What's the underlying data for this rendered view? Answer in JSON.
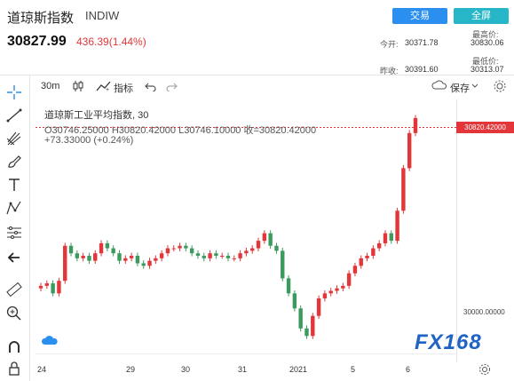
{
  "header": {
    "title": "道琼斯指数",
    "code": "INDIW",
    "trade_button": "交易",
    "fullscreen_button": "全屏",
    "price": "30827.99",
    "change": "436.39(1.44%)",
    "stats": {
      "open_label": "今开:",
      "open_value": "30371.78",
      "high_label": "最高价:",
      "high_value": "30830.06",
      "prev_label": "昨收:",
      "prev_value": "30391.60",
      "low_label": "最低价:",
      "low_value": "30313.07"
    }
  },
  "toolbar": {
    "interval": "30m",
    "indicator_label": "指标",
    "save_label": "保存"
  },
  "legend": {
    "name": "道琼斯工业平均指数, 30",
    "ohlc": "O30746.25000  H30820.42000  L30746.10000  收=30820.42000",
    "delta": "+73.33000 (+0.24%)"
  },
  "price_tag": "30820.42000",
  "axis_label_30000": "30000.00000",
  "colors": {
    "up": "#e2363a",
    "down": "#3c9a5f",
    "accent": "#2b8ff0"
  },
  "chart_data": {
    "type": "candlestick",
    "title": "道琼斯工业平均指数, 30",
    "interval": "30m",
    "x_tick_labels": [
      "24",
      "29",
      "30",
      "31",
      "2021",
      "5",
      "6"
    ],
    "y_labels": [
      "30000.00000"
    ],
    "last_price": 30820.42,
    "ohlc_last": {
      "open": 30746.25,
      "high": 30820.42,
      "low": 30746.1,
      "close": 30820.42
    },
    "closes": [
      30150,
      30160,
      30120,
      30170,
      30310,
      30280,
      30260,
      30270,
      30250,
      30280,
      30320,
      30300,
      30280,
      30250,
      30260,
      30270,
      30240,
      30230,
      30250,
      30260,
      30280,
      30300,
      30300,
      30310,
      30300,
      30280,
      30270,
      30260,
      30280,
      30270,
      30270,
      30260,
      30260,
      30280,
      30290,
      30300,
      30330,
      30360,
      30310,
      30290,
      30180,
      30120,
      30060,
      29980,
      29950,
      30030,
      30100,
      30120,
      30130,
      30140,
      30150,
      30200,
      30230,
      30260,
      30270,
      30300,
      30320,
      30360,
      30330,
      30450,
      30620,
      30760,
      30820
    ],
    "ylim": [
      29880,
      30880
    ]
  }
}
